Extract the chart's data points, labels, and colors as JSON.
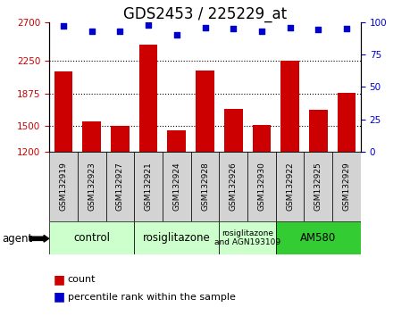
{
  "title": "GDS2453 / 225229_at",
  "categories": [
    "GSM132919",
    "GSM132923",
    "GSM132927",
    "GSM132921",
    "GSM132924",
    "GSM132928",
    "GSM132926",
    "GSM132930",
    "GSM132922",
    "GSM132925",
    "GSM132929"
  ],
  "bar_values": [
    2130,
    1555,
    1500,
    2440,
    1450,
    2140,
    1700,
    1510,
    2250,
    1680,
    1880
  ],
  "percentile_values": [
    97,
    93,
    93,
    98,
    90,
    96,
    95,
    93,
    96,
    94,
    95
  ],
  "bar_color": "#cc0000",
  "dot_color": "#0000cc",
  "ylim_left": [
    1200,
    2700
  ],
  "ylim_right": [
    0,
    100
  ],
  "yticks_left": [
    1200,
    1500,
    1875,
    2250,
    2700
  ],
  "yticks_right": [
    0,
    25,
    50,
    75,
    100
  ],
  "grid_values": [
    1500,
    1875,
    2250
  ],
  "agent_groups": [
    {
      "label": "control",
      "start": 0,
      "end": 2,
      "color": "#ccffcc"
    },
    {
      "label": "rosiglitazone",
      "start": 3,
      "end": 5,
      "color": "#ccffcc"
    },
    {
      "label": "rosiglitazone\nand AGN193109",
      "start": 6,
      "end": 7,
      "color": "#ccffcc"
    },
    {
      "label": "AM580",
      "start": 8,
      "end": 10,
      "color": "#33cc33"
    }
  ],
  "tick_label_color_left": "#cc0000",
  "tick_label_color_right": "#0000cc",
  "title_fontsize": 12,
  "label_fontsize": 8,
  "legend_fontsize": 8
}
